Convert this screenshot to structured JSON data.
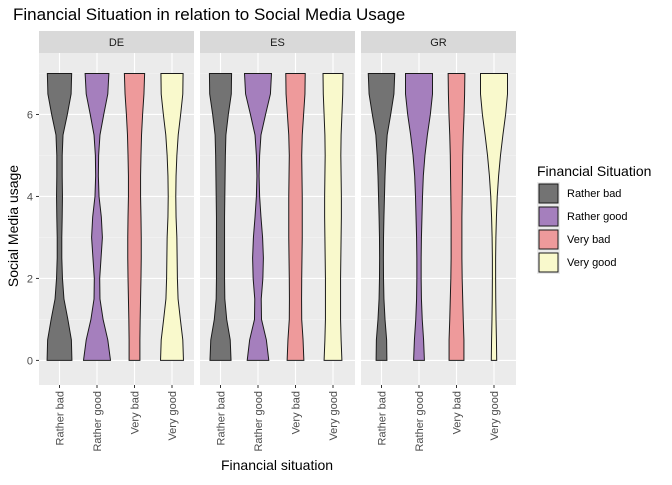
{
  "chart_data": {
    "type": "violin",
    "title": "Financial Situation in relation to Social Media Usage",
    "xlabel": "Financial situation",
    "ylabel": "Social Media usage",
    "ylim": [
      -0.6,
      7.5
    ],
    "yticks": [
      "0",
      "2",
      "4",
      "6"
    ],
    "categories": [
      "Rather bad",
      "Rather good",
      "Very bad",
      "Very good"
    ],
    "facets": [
      "DE",
      "ES",
      "GR"
    ],
    "legend": {
      "title": "Financial Situation",
      "position": "right",
      "entries": [
        "Rather bad",
        "Rather good",
        "Very bad",
        "Very good"
      ]
    },
    "colors": {
      "Rather bad": "#737373",
      "Rather good": "#a57fbd",
      "Very bad": "#ee9a9b",
      "Very good": "#f9f9cc"
    },
    "density_y": [
      0,
      0.5,
      1,
      1.5,
      2,
      2.5,
      3,
      3.5,
      4,
      4.5,
      5,
      5.5,
      6,
      6.5,
      7
    ],
    "panels": [
      {
        "facet": "DE",
        "violins": [
          {
            "category": "Rather bad",
            "width": [
              0.92,
              0.88,
              0.62,
              0.33,
              0.22,
              0.17,
              0.17,
              0.2,
              0.22,
              0.2,
              0.2,
              0.26,
              0.58,
              0.86,
              0.9
            ]
          },
          {
            "category": "Rather good",
            "width": [
              1.0,
              0.8,
              0.45,
              0.22,
              0.2,
              0.3,
              0.4,
              0.32,
              0.15,
              0.1,
              0.12,
              0.22,
              0.5,
              0.8,
              0.88
            ]
          },
          {
            "category": "Very bad",
            "width": [
              0.4,
              0.4,
              0.42,
              0.45,
              0.48,
              0.5,
              0.5,
              0.48,
              0.45,
              0.45,
              0.48,
              0.52,
              0.6,
              0.7,
              0.75
            ]
          },
          {
            "category": "Very good",
            "width": [
              0.85,
              0.8,
              0.62,
              0.45,
              0.4,
              0.38,
              0.36,
              0.3,
              0.28,
              0.3,
              0.36,
              0.46,
              0.64,
              0.8,
              0.82
            ]
          }
        ]
      },
      {
        "facet": "ES",
        "violins": [
          {
            "category": "Rather bad",
            "width": [
              0.78,
              0.72,
              0.46,
              0.32,
              0.3,
              0.3,
              0.3,
              0.3,
              0.32,
              0.34,
              0.36,
              0.4,
              0.58,
              0.8,
              0.82
            ]
          },
          {
            "category": "Rather good",
            "width": [
              0.8,
              0.62,
              0.26,
              0.24,
              0.36,
              0.4,
              0.34,
              0.22,
              0.12,
              0.08,
              0.12,
              0.22,
              0.56,
              0.92,
              1.0
            ]
          },
          {
            "category": "Very bad",
            "width": [
              0.62,
              0.56,
              0.46,
              0.45,
              0.46,
              0.48,
              0.5,
              0.5,
              0.5,
              0.48,
              0.46,
              0.5,
              0.6,
              0.7,
              0.72
            ]
          },
          {
            "category": "Very good",
            "width": [
              0.66,
              0.6,
              0.56,
              0.56,
              0.56,
              0.58,
              0.6,
              0.62,
              0.62,
              0.6,
              0.58,
              0.6,
              0.66,
              0.72,
              0.74
            ]
          }
        ]
      },
      {
        "facet": "GR",
        "violins": [
          {
            "category": "Rather bad",
            "width": [
              0.4,
              0.38,
              0.26,
              0.18,
              0.15,
              0.14,
              0.15,
              0.18,
              0.22,
              0.26,
              0.32,
              0.42,
              0.68,
              0.92,
              0.98
            ]
          },
          {
            "category": "Rather good",
            "width": [
              0.4,
              0.34,
              0.24,
              0.18,
              0.16,
              0.16,
              0.18,
              0.22,
              0.26,
              0.32,
              0.44,
              0.62,
              0.84,
              1.0,
              1.0
            ]
          },
          {
            "category": "Very bad",
            "width": [
              0.55,
              0.55,
              0.5,
              0.46,
              0.42,
              0.4,
              0.4,
              0.4,
              0.42,
              0.44,
              0.46,
              0.5,
              0.56,
              0.6,
              0.62
            ]
          },
          {
            "category": "Very good",
            "width": [
              0.2,
              0.18,
              0.15,
              0.13,
              0.12,
              0.12,
              0.14,
              0.18,
              0.24,
              0.34,
              0.48,
              0.66,
              0.86,
              1.0,
              1.0
            ]
          }
        ]
      }
    ]
  }
}
